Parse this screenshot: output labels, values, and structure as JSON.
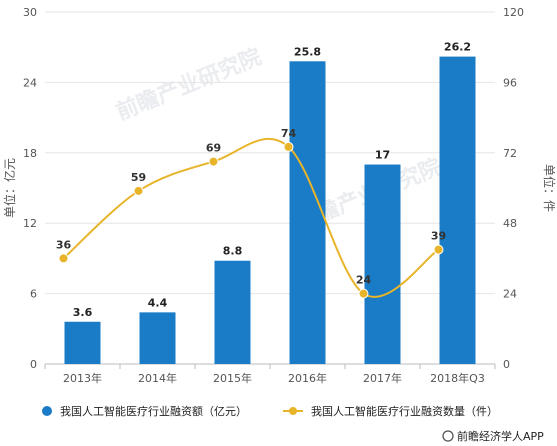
{
  "chart_data": {
    "type": "bar+line",
    "categories": [
      "2013年",
      "2014年",
      "2015年",
      "2016年",
      "2017年",
      "2018年Q3"
    ],
    "series": [
      {
        "name": "我国人工智能医疗行业融资额（亿元）",
        "type": "bar",
        "axis": "left",
        "values": [
          3.6,
          4.4,
          8.8,
          25.8,
          17,
          26.2
        ],
        "labels": [
          "3.6",
          "4.4",
          "8.8",
          "25.8",
          "17",
          "26.2"
        ],
        "color": "#1a7bc6"
      },
      {
        "name": "我国人工智能医疗行业融资数量（件）",
        "type": "line",
        "axis": "right",
        "values": [
          36,
          59,
          69,
          74,
          24,
          39
        ],
        "labels": [
          "36",
          "59",
          "69",
          "74",
          "24",
          "39"
        ],
        "color": "#e8b42a"
      }
    ],
    "ylabel_left": "单位：亿元",
    "ylabel_right": "单位：件",
    "ylim_left": [
      0,
      30
    ],
    "ylim_right": [
      0,
      120
    ],
    "yticks_left": [
      "0",
      "6",
      "12",
      "18",
      "24",
      "30"
    ],
    "yticks_right": [
      "0",
      "24",
      "48",
      "72",
      "96",
      "120"
    ],
    "grid": true,
    "legend_position": "bottom"
  },
  "watermark": "前瞻产业研究院",
  "credit": "前瞻经济学人APP"
}
